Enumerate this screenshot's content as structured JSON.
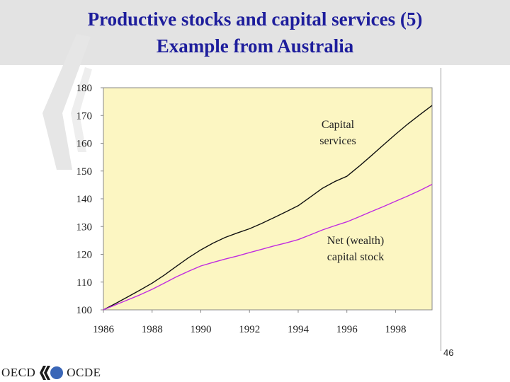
{
  "header": {
    "title_line1": "Productive stocks and capital services (5)",
    "title_line2": "Example from Australia"
  },
  "page_number": "46",
  "footer": {
    "logo_left": "OECD",
    "logo_right": "OCDE"
  },
  "colors": {
    "title": "#1e1e9c",
    "plot_background": "#fcf6c2",
    "capital_services": "#111111",
    "net_capital_stock": "#c02ce0"
  },
  "chart_data": {
    "type": "line",
    "x": [
      1986,
      1986.5,
      1987,
      1987.5,
      1988,
      1988.5,
      1989,
      1989.5,
      1990,
      1990.5,
      1991,
      1991.5,
      1992,
      1992.5,
      1993,
      1993.5,
      1994,
      1994.5,
      1995,
      1995.5,
      1996,
      1996.5,
      1997,
      1997.5,
      1998,
      1998.5,
      1999,
      1999.5
    ],
    "series": [
      {
        "name": "Capital services",
        "values": [
          100,
          102.3,
          104.7,
          107.1,
          109.6,
          112.5,
          115.7,
          118.8,
          121.6,
          124.0,
          126.1,
          127.7,
          129.2,
          131.1,
          133.2,
          135.3,
          137.5,
          140.6,
          143.8,
          146.2,
          148.1,
          151.7,
          155.5,
          159.4,
          163.2,
          166.9,
          170.3,
          173.6
        ],
        "color": "#111111"
      },
      {
        "name": "Net (wealth) capital stock",
        "values": [
          100,
          101.8,
          103.6,
          105.4,
          107.4,
          109.6,
          111.9,
          113.9,
          115.8,
          117.1,
          118.3,
          119.4,
          120.6,
          121.8,
          123.0,
          124.1,
          125.3,
          127.0,
          128.8,
          130.3,
          131.7,
          133.5,
          135.4,
          137.2,
          139.1,
          141.0,
          143.0,
          145.2
        ],
        "color": "#c02ce0"
      }
    ],
    "annotations": [
      {
        "series": 0,
        "lines": [
          "Capital",
          "services"
        ]
      },
      {
        "series": 1,
        "lines": [
          "Net (wealth)",
          "capital stock"
        ]
      }
    ],
    "xticks": [
      1986,
      1988,
      1990,
      1992,
      1994,
      1996,
      1998
    ],
    "yticks": [
      100,
      110,
      120,
      130,
      140,
      150,
      160,
      170,
      180
    ],
    "xlim": [
      1986,
      1999.5
    ],
    "ylim": [
      100,
      180
    ],
    "grid": false,
    "legend": "none",
    "title": "",
    "xlabel": "",
    "ylabel": ""
  }
}
